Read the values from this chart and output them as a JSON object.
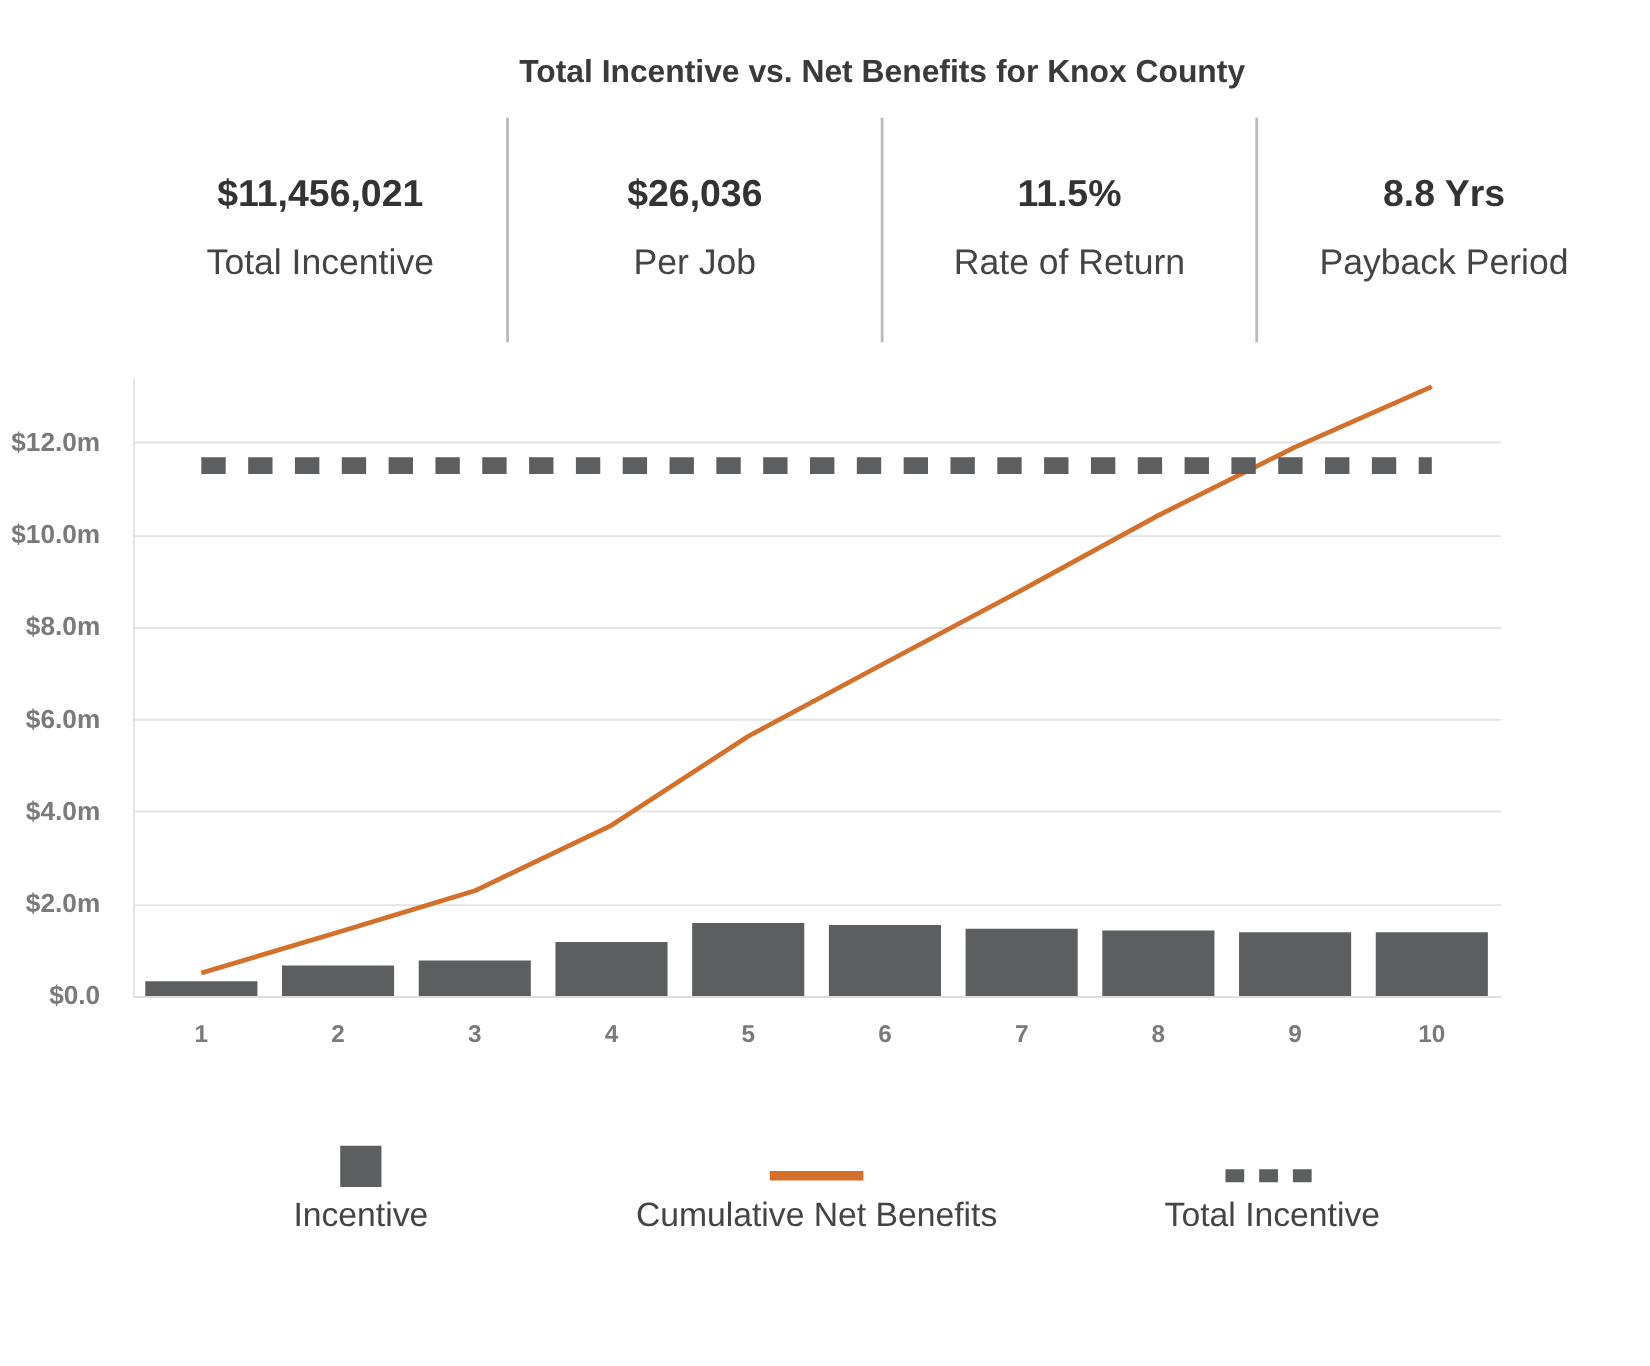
{
  "chart_data": [
    {
      "type": "other",
      "title": "Total Incentive vs. Net Benefits for Knox County",
      "annotations": [
        "$11,456,021",
        "Total Incentive",
        "$26,036",
        "Per Job",
        "11.5%",
        "Rate of Return",
        "8.8 Yrs",
        "Payback Period"
      ]
    },
    {
      "type": "bar",
      "categories": [
        "1",
        "2",
        "3",
        "4",
        "5",
        "6",
        "7",
        "8",
        "9",
        "10"
      ],
      "series": [
        {
          "name": "Incentive",
          "type": "bar",
          "color": "#5d5e60",
          "values": [
            0.32,
            0.66,
            0.77,
            1.17,
            1.58,
            1.54,
            1.46,
            1.42,
            1.38,
            1.38
          ]
        },
        {
          "name": "Cumulative Net Benefits",
          "type": "line",
          "color": "#d4702a",
          "line_style": "solid",
          "values": [
            0.5,
            1.38,
            2.28,
            3.7,
            5.63,
            7.22,
            8.8,
            10.42,
            11.9,
            13.21
          ]
        },
        {
          "name": "Total Incentive",
          "type": "line",
          "color": "#5d5e60",
          "line_style": "dashed",
          "values": [
            11.5,
            11.5,
            11.5,
            11.5,
            11.5,
            11.5,
            11.5,
            11.5,
            11.5,
            11.5
          ]
        }
      ],
      "ylim": [
        0,
        13.4
      ],
      "yticks": [
        {
          "value": 0,
          "label": "$0.0"
        },
        {
          "value": 2,
          "label": "$2.0m"
        },
        {
          "value": 4,
          "label": "$4.0m"
        },
        {
          "value": 6,
          "label": "$6.0m"
        },
        {
          "value": 8,
          "label": "$8.0m"
        },
        {
          "value": 10,
          "label": "$10.0m"
        },
        {
          "value": 12,
          "label": "$12.0m"
        }
      ],
      "grid": "y",
      "legend": "bottom",
      "marker": "none"
    }
  ]
}
